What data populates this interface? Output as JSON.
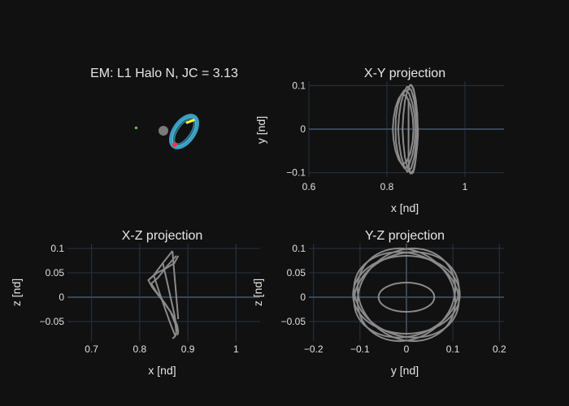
{
  "chart_data": [
    {
      "type": "3d-scatter",
      "title": "EM: L1 Halo N, JC = 3.13",
      "markers": [
        {
          "name": "earth",
          "color": "#7a7a7a"
        },
        {
          "name": "moon",
          "color": "#6ab04c"
        },
        {
          "name": "start",
          "color": "#ffff33"
        },
        {
          "name": "end",
          "color": "#ff3333"
        }
      ],
      "orbit_color": "#3a9fc2"
    },
    {
      "type": "line",
      "title": "X-Y projection",
      "xlabel": "x [nd]",
      "ylabel": "y [nd]",
      "xlim": [
        0.6,
        1.1
      ],
      "ylim": [
        -0.11,
        0.11
      ],
      "xticks": [
        0.6,
        0.8,
        1
      ],
      "xtick_labels": [
        "0.6",
        "0.8",
        "1"
      ],
      "yticks": [
        0.1,
        0,
        -0.1
      ],
      "ytick_labels": [
        "0.1",
        "0",
        "−0.1"
      ],
      "grid": true,
      "series": [
        {
          "x": [
            0.8555,
            0.8565,
            0.8585,
            0.861,
            0.864,
            0.867,
            0.8695,
            0.8715,
            0.8735,
            0.8755,
            0.878,
            0.8795,
            0.8795,
            0.878,
            0.8755,
            0.8735,
            0.8715,
            0.8695,
            0.867,
            0.864,
            0.861,
            0.8585,
            0.8565,
            0.8555,
            0.8555
          ],
          "y": [
            0.088,
            0.096,
            0.1,
            0.102,
            0.1,
            0.093,
            0.085,
            0.072,
            0.055,
            0.035,
            0.015,
            0.0,
            -0.015,
            -0.035,
            -0.055,
            -0.072,
            -0.085,
            -0.093,
            -0.1,
            -0.102,
            -0.1,
            -0.096,
            -0.088,
            -0.07,
            0.07
          ]
        },
        {
          "x": [
            0.838,
            0.83,
            0.822,
            0.817,
            0.815,
            0.817,
            0.822,
            0.83,
            0.838,
            0.85,
            0.86,
            0.866,
            0.868,
            0.866,
            0.86,
            0.85,
            0.838
          ],
          "y": [
            0.08,
            0.07,
            0.05,
            0.025,
            0.0,
            -0.025,
            -0.05,
            -0.07,
            -0.08,
            -0.076,
            -0.055,
            -0.028,
            0.0,
            0.028,
            0.055,
            0.076,
            0.08
          ]
        },
        {
          "x": [
            0.845,
            0.836,
            0.828,
            0.823,
            0.822,
            0.823,
            0.828,
            0.836,
            0.845,
            0.856,
            0.865,
            0.871,
            0.873,
            0.871,
            0.865,
            0.856,
            0.845
          ],
          "y": [
            0.09,
            0.078,
            0.055,
            0.028,
            0.0,
            -0.028,
            -0.055,
            -0.078,
            -0.09,
            -0.083,
            -0.06,
            -0.031,
            0.0,
            0.031,
            0.06,
            0.083,
            0.09
          ]
        },
        {
          "x": [
            0.852,
            0.844,
            0.836,
            0.831,
            0.829,
            0.831,
            0.836,
            0.844,
            0.852,
            0.862,
            0.87,
            0.875,
            0.877,
            0.875,
            0.87,
            0.862,
            0.852
          ],
          "y": [
            0.098,
            0.085,
            0.06,
            0.03,
            0.0,
            -0.03,
            -0.06,
            -0.085,
            -0.098,
            -0.09,
            -0.065,
            -0.033,
            0.0,
            0.033,
            0.065,
            0.09,
            0.098
          ]
        },
        {
          "x": [
            0.86,
            0.853,
            0.846,
            0.842,
            0.84,
            0.842,
            0.846,
            0.853,
            0.86,
            0.868,
            0.874,
            0.878,
            0.879,
            0.878,
            0.874,
            0.868,
            0.86
          ],
          "y": [
            0.102,
            0.09,
            0.064,
            0.032,
            0.0,
            -0.032,
            -0.064,
            -0.09,
            -0.102,
            -0.094,
            -0.068,
            -0.035,
            0.0,
            0.035,
            0.068,
            0.094,
            0.102
          ]
        }
      ]
    },
    {
      "type": "line",
      "title": "X-Z projection",
      "xlabel": "x [nd]",
      "ylabel": "z [nd]",
      "xlim": [
        0.65,
        1.05
      ],
      "ylim": [
        -0.09,
        0.11
      ],
      "xticks": [
        0.7,
        0.8,
        0.9,
        1
      ],
      "xtick_labels": [
        "0.7",
        "0.8",
        "0.9",
        "1"
      ],
      "yticks": [
        0.1,
        0.05,
        0,
        -0.05
      ],
      "ytick_labels": [
        "0.1",
        "0.05",
        "0",
        "−0.05"
      ],
      "grid": true,
      "series": [
        {
          "x": [
            0.868,
            0.848,
            0.829,
            0.818,
            0.826,
            0.846,
            0.864,
            0.874,
            0.876,
            0.874,
            0.868
          ],
          "y": [
            0.095,
            0.07,
            0.045,
            0.035,
            0.02,
            -0.005,
            -0.03,
            -0.055,
            -0.072,
            -0.08,
            -0.085
          ]
        },
        {
          "x": [
            0.876,
            0.858,
            0.838,
            0.824,
            0.834,
            0.852,
            0.868,
            0.878,
            0.88,
            0.878
          ],
          "y": [
            0.085,
            0.065,
            0.04,
            0.028,
            0.012,
            -0.012,
            -0.036,
            -0.058,
            -0.072,
            -0.078
          ]
        },
        {
          "x": [
            0.868,
            0.871,
            0.874,
            0.877,
            0.88
          ],
          "y": [
            0.095,
            0.06,
            0.025,
            -0.01,
            -0.045
          ]
        },
        {
          "x": [
            0.848,
            0.856,
            0.864,
            0.872,
            0.878
          ],
          "y": [
            0.07,
            0.035,
            0.0,
            -0.035,
            -0.07
          ]
        },
        {
          "x": [
            0.829,
            0.84,
            0.852,
            0.864,
            0.874
          ],
          "y": [
            0.045,
            0.012,
            -0.022,
            -0.055,
            -0.08
          ]
        },
        {
          "x": [
            0.818,
            0.836,
            0.856,
            0.872,
            0.88
          ],
          "y": [
            0.035,
            0.05,
            0.06,
            0.07,
            0.085
          ]
        }
      ]
    },
    {
      "type": "line",
      "title": "Y-Z projection",
      "xlabel": "y [nd]",
      "ylabel": "z [nd]",
      "xlim": [
        -0.21,
        0.21
      ],
      "ylim": [
        -0.09,
        0.11
      ],
      "xticks": [
        -0.2,
        -0.1,
        0,
        0.1,
        0.2
      ],
      "xtick_labels": [
        "−0.2",
        "−0.1",
        "0",
        "0.1",
        "0.2"
      ],
      "yticks": [
        0.1,
        0.05,
        0,
        -0.05
      ],
      "ytick_labels": [
        "0.1",
        "0.05",
        "0",
        "−0.05"
      ],
      "grid": true,
      "orbit_family": {
        "loops": [
          {
            "center": [
              0.0,
              0.005
            ],
            "ry": 0.115,
            "rz": 0.085,
            "tilt_deg": 18
          },
          {
            "center": [
              0.0,
              0.005
            ],
            "ry": 0.115,
            "rz": 0.085,
            "tilt_deg": -18
          },
          {
            "center": [
              0.0,
              0.005
            ],
            "ry": 0.11,
            "rz": 0.09,
            "tilt_deg": 35
          },
          {
            "center": [
              0.0,
              0.005
            ],
            "ry": 0.11,
            "rz": 0.09,
            "tilt_deg": -35
          },
          {
            "center": [
              0.0,
              0.005
            ],
            "ry": 0.115,
            "rz": 0.08,
            "tilt_deg": 0
          },
          {
            "center": [
              0.0,
              0.0
            ],
            "ry": 0.06,
            "rz": 0.03,
            "tilt_deg": 0
          }
        ]
      }
    }
  ]
}
